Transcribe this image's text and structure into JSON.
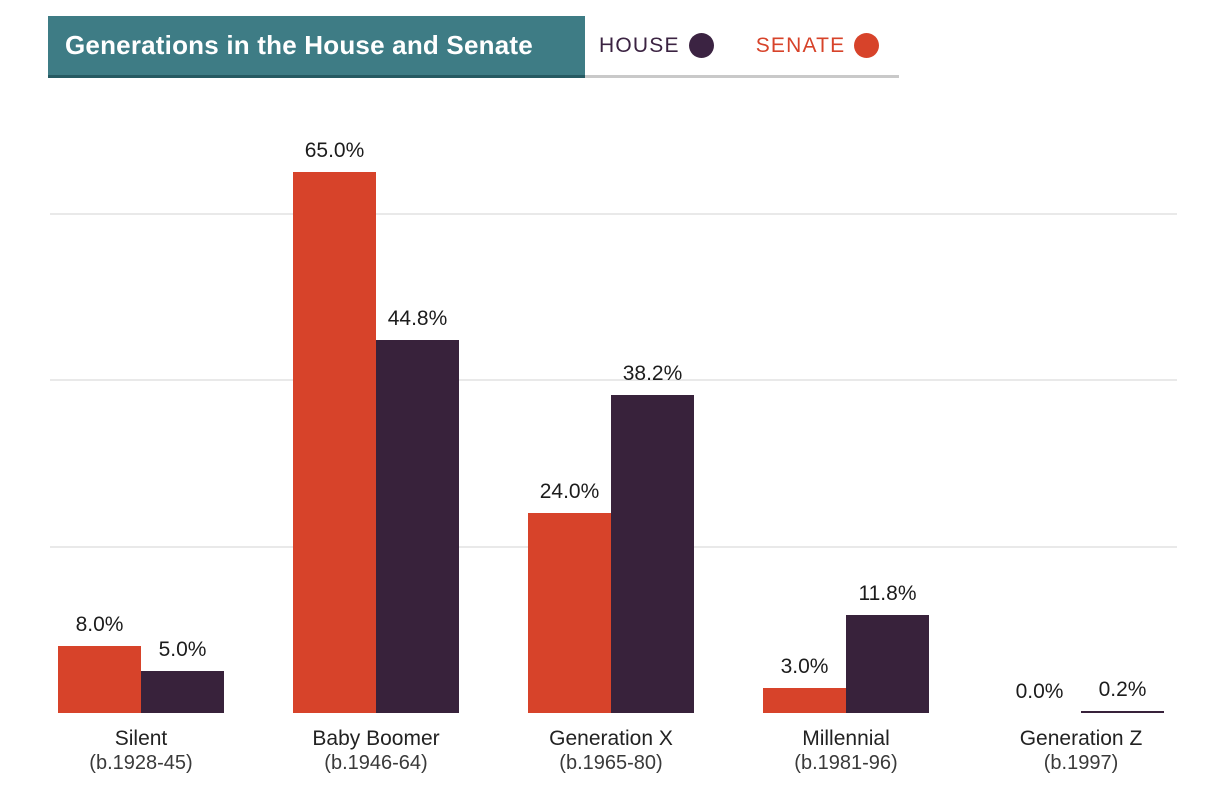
{
  "header": {
    "title": "Generations in the House and Senate",
    "legend": [
      {
        "label": "HOUSE",
        "color": "#3b2342"
      },
      {
        "label": "SENATE",
        "color": "#d7432a"
      }
    ]
  },
  "colors": {
    "header_bg": "#3e7c85",
    "header_border": "#265a62",
    "legend_underline": "#c9c9c9",
    "gridline": "#e9e9e9",
    "house": "#38223b",
    "senate": "#d7432a",
    "value_text": "#1c1c1c"
  },
  "chart_data": {
    "type": "bar",
    "title": "Generations in the House and Senate",
    "categories": [
      "Silent",
      "Baby Boomer",
      "Generation X",
      "Millennial",
      "Generation Z"
    ],
    "category_sublabels": [
      "(b.1928-45)",
      "(b.1946-64)",
      "(b.1965-80)",
      "(b.1981-96)",
      "(b.1997)"
    ],
    "series": [
      {
        "name": "SENATE",
        "color": "#d7432a",
        "values": [
          8.0,
          65.0,
          24.0,
          3.0,
          0.0
        ],
        "labels": [
          "8.0%",
          "65.0%",
          "24.0%",
          "3.0%",
          "0.0%"
        ]
      },
      {
        "name": "HOUSE",
        "color": "#38223b",
        "values": [
          5.0,
          44.8,
          38.2,
          11.8,
          0.2
        ],
        "labels": [
          "5.0%",
          "44.8%",
          "38.2%",
          "11.8%",
          "0.2%"
        ]
      }
    ],
    "bar_order_left_to_right": [
      "SENATE",
      "HOUSE"
    ],
    "ylabel": "",
    "xlabel": "",
    "ylim": [
      0,
      80
    ],
    "gridlines": [
      20,
      40,
      60
    ],
    "grid": true,
    "y_axis_labels_visible": false,
    "legend_position": "top-right"
  }
}
